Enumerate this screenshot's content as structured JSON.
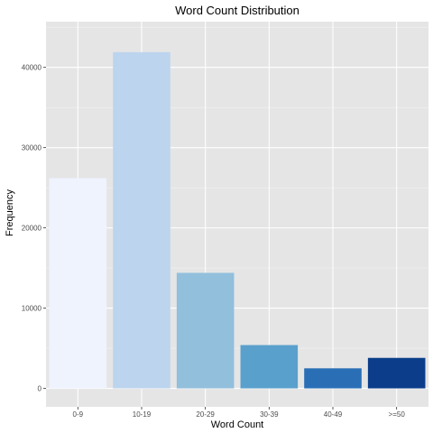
{
  "chart_data": {
    "type": "bar",
    "title": "Word Count Distribution",
    "xlabel": "Word Count",
    "ylabel": "Frequency",
    "categories": [
      "0-9",
      "10-19",
      "20-29",
      "30-39",
      "40-49",
      ">=50"
    ],
    "values": [
      26200,
      41900,
      14400,
      5400,
      2500,
      3800
    ],
    "colors": [
      "#eef3fe",
      "#bcd4ee",
      "#91bfdc",
      "#5aa0cd",
      "#2a6fb6",
      "#0b3d8a"
    ],
    "ylim": [
      -2300,
      45700
    ],
    "yticks": [
      0,
      10000,
      20000,
      30000,
      40000
    ],
    "ytick_labels": [
      "0",
      "10000",
      "20000",
      "30000",
      "40000"
    ],
    "grid": true,
    "legend": "none",
    "background": "#e5e5e5"
  }
}
